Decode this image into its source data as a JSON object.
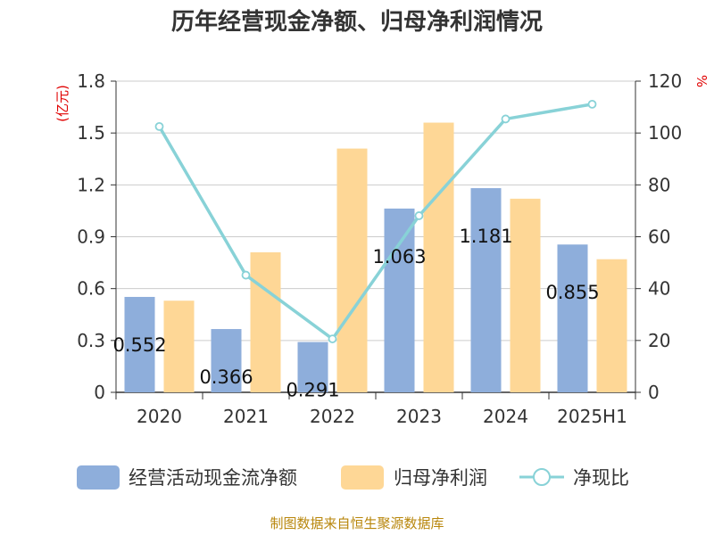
{
  "title": "历年经营现金净额、归母净利润情况",
  "source": "制图数据来自恒生聚源数据库",
  "chart_data": {
    "type": "bar",
    "title": "历年经营现金净额、归母净利润情况",
    "categories": [
      "2020",
      "2021",
      "2022",
      "2023",
      "2024",
      "2025H1"
    ],
    "y_left": {
      "unit": "(亿元)",
      "ylim": [
        0,
        1.8
      ],
      "ticks": [
        "0",
        "0.3",
        "0.6",
        "0.9",
        "1.2",
        "1.5",
        "1.8"
      ]
    },
    "y_right": {
      "unit": "%",
      "ylim": [
        0,
        120
      ],
      "ticks": [
        "0",
        "20",
        "40",
        "60",
        "80",
        "100",
        "120"
      ]
    },
    "grid": true,
    "legend_position": "bottom",
    "series": [
      {
        "name": "经营活动现金流净额",
        "type": "bar",
        "axis": "left",
        "color": "#8eaedb",
        "values": [
          0.552,
          0.366,
          0.291,
          1.063,
          1.181,
          0.855
        ],
        "labels": [
          "0.552",
          "0.366",
          "0.291",
          "1.063",
          "1.181",
          "0.855"
        ]
      },
      {
        "name": "归母净利润",
        "type": "bar",
        "axis": "left",
        "color": "#fed796",
        "values": [
          0.53,
          0.81,
          1.41,
          1.56,
          1.12,
          0.77
        ]
      },
      {
        "name": "净现比",
        "type": "line",
        "axis": "right",
        "color": "#88d2d7",
        "values": [
          102.5,
          45.2,
          20.6,
          68.1,
          105.4,
          111.1
        ]
      }
    ]
  }
}
